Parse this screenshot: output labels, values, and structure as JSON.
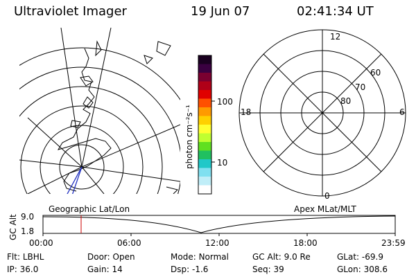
{
  "header": {
    "instrument": "Ultraviolet Imager",
    "date": "19 Jun 07",
    "time": "02:41:34 UT"
  },
  "geo_panel": {
    "label": "Geographic Lat/Lon"
  },
  "colorbar": {
    "unit_label": "photon cm⁻²s⁻¹",
    "ticks": [
      "100",
      "10"
    ],
    "colors": [
      "#1a0020",
      "#3a0040",
      "#7a0030",
      "#b00018",
      "#e00000",
      "#ff5000",
      "#ff9a00",
      "#ffd000",
      "#ffff30",
      "#c0ff30",
      "#60e020",
      "#20c060",
      "#20c8c8",
      "#80e0f0",
      "#c0eef8",
      "#ffffff"
    ]
  },
  "apex_panel": {
    "label": "Apex MLat/MLT",
    "mlt_labels": {
      "top": "12",
      "bottom": "0",
      "left": "18",
      "right": "6"
    },
    "lat_labels": [
      "60",
      "70",
      "80"
    ]
  },
  "altitude_plot": {
    "ylabel": "GC Alt",
    "yticks": [
      "9.0",
      "1.8"
    ],
    "xticks": [
      "00:00",
      "06:00",
      "12:00",
      "18:00",
      "23:59"
    ],
    "cursor_color": "#cc0000"
  },
  "info": {
    "row1": [
      {
        "label": "Flt:",
        "value": "LBHL"
      },
      {
        "label": "Door:",
        "value": "Open"
      },
      {
        "label": "Mode:",
        "value": "Normal"
      },
      {
        "label": "GC Alt:",
        "value": "9.0 Re"
      },
      {
        "label": "GLat:",
        "value": "-69.9"
      }
    ],
    "row2": [
      {
        "label": "IP:",
        "value": "36.0"
      },
      {
        "label": "Gain:",
        "value": "14"
      },
      {
        "label": "Dsp:",
        "value": "-1.6"
      },
      {
        "label": "Seq:",
        "value": "39"
      },
      {
        "label": "GLon:",
        "value": "308.6"
      }
    ]
  }
}
